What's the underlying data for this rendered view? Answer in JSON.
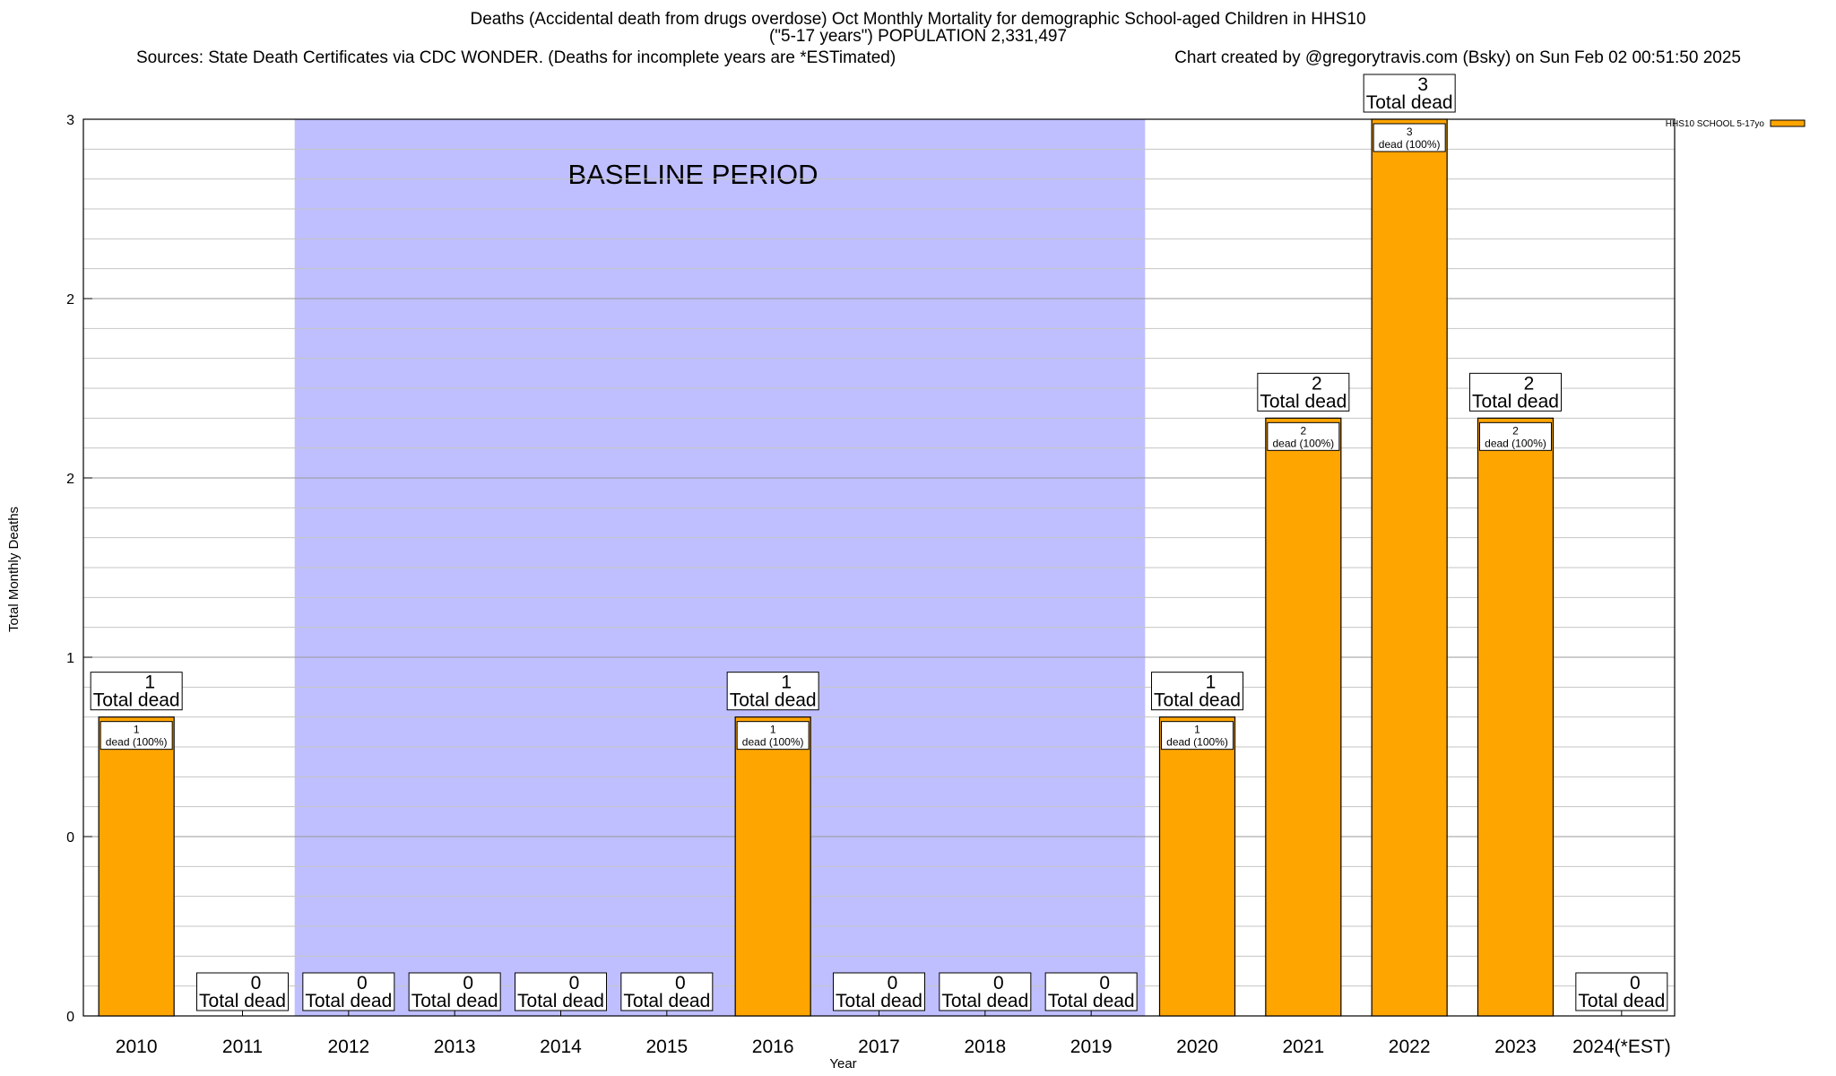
{
  "header": {
    "title_line1": "Deaths (Accidental death from drugs overdose) Oct Monthly Mortality for demographic School-aged Children in HHS10",
    "title_line2": "(\"5-17 years\") POPULATION 2,331,497",
    "sources": "Sources: State Death Certificates via CDC WONDER. (Deaths for incomplete years are *ESTimated)",
    "credit": "Chart created by @gregorytravis.com (Bsky) on Sun Feb 02 00:51:50 2025"
  },
  "chart_data": {
    "type": "bar",
    "xlabel": "Year",
    "ylabel": "Total Monthly Deaths",
    "ylim": [
      0,
      3
    ],
    "y_tick_labels": [
      "0",
      "0",
      "1",
      "2",
      "2",
      "3"
    ],
    "grid": true,
    "legend_position": "top-right",
    "categories": [
      "2010",
      "2011",
      "2012",
      "2013",
      "2014",
      "2015",
      "2016",
      "2017",
      "2018",
      "2019",
      "2020",
      "2021",
      "2022",
      "2023",
      "2024(*EST)"
    ],
    "series": [
      {
        "name": "HHS10 SCHOOL 5-17yo",
        "color": "#FFA500",
        "values": [
          1,
          0,
          0,
          0,
          0,
          0,
          1,
          0,
          0,
          0,
          1,
          2,
          3,
          2,
          0
        ]
      }
    ],
    "total_label_text": "Total dead",
    "inner_label_text": "dead (100%)",
    "annotation": {
      "text": "BASELINE PERIOD",
      "start_category": "2012",
      "end_category": "2019",
      "color": "#BFBFFF"
    }
  }
}
